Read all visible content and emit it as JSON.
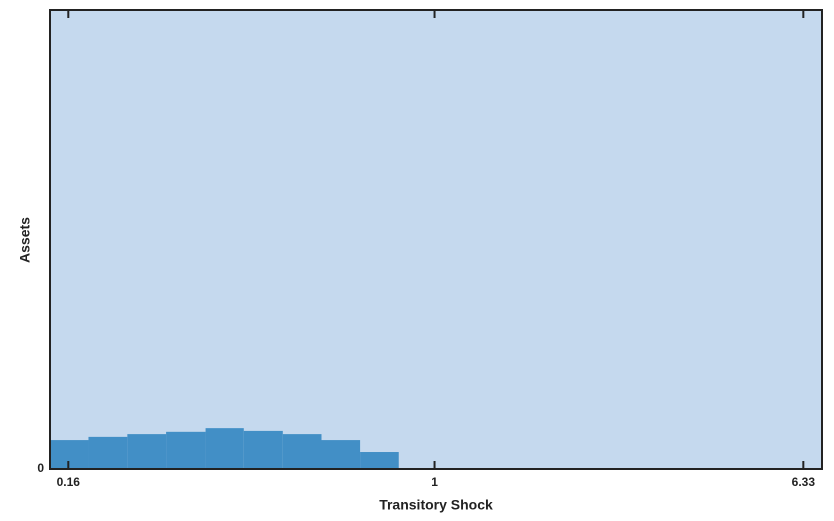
{
  "chart_data": {
    "type": "histogram",
    "x_label": "Transitory Shock",
    "y_label": "Assets",
    "bins": [
      0.146,
      0.177,
      0.215,
      0.261,
      0.318,
      0.385,
      0.468,
      0.568,
      0.689,
      0.836
    ],
    "values": [
      0.063,
      0.07,
      0.076,
      0.081,
      0.089,
      0.083,
      0.076,
      0.063,
      0.037
    ],
    "color": "#428fc6",
    "background": "#c5d9ee",
    "xscale": "log",
    "xlim": [
      0.146,
      6.95
    ],
    "xticks": [
      0.16,
      1,
      6.33
    ],
    "ylim": [
      0,
      1
    ],
    "yticks": [
      0
    ]
  }
}
